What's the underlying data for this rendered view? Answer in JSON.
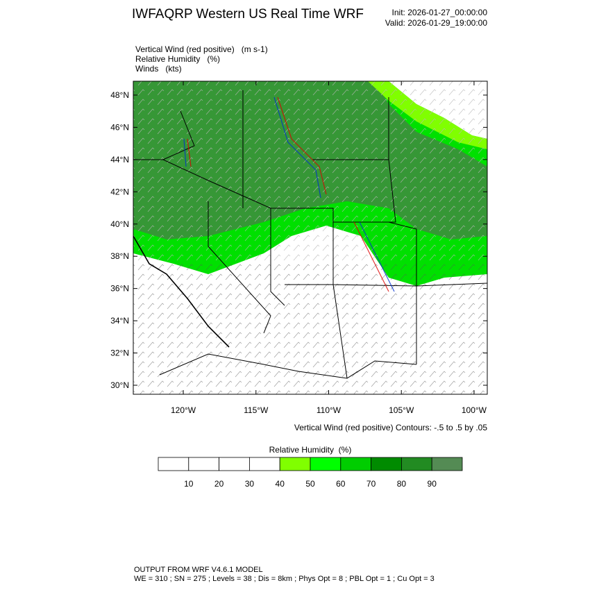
{
  "header": {
    "title": "IWFAQRP Western US Real Time WRF",
    "init": "Init: 2026-01-27_00:00:00",
    "valid": "Valid: 2026-01-29_19:00:00"
  },
  "fields": [
    "Vertical Wind (red positive)   (m s-1)",
    "Relative Humidity   (%)",
    "Winds   (kts)"
  ],
  "map": {
    "latlim": [
      29.44,
      48.86
    ],
    "lonlim": [
      -123.44,
      -99.09
    ],
    "lat_ticks": [
      {
        "value": 30,
        "label": "30°N"
      },
      {
        "value": 32,
        "label": "32°N"
      },
      {
        "value": 34,
        "label": "34°N"
      },
      {
        "value": 36,
        "label": "36°N"
      },
      {
        "value": 38,
        "label": "38°N"
      },
      {
        "value": 40,
        "label": "40°N"
      },
      {
        "value": 42,
        "label": "42°N"
      },
      {
        "value": 44,
        "label": "44°N"
      },
      {
        "value": 46,
        "label": "46°N"
      },
      {
        "value": 48,
        "label": "48°N"
      }
    ],
    "lon_ticks": [
      {
        "value": -120,
        "label": "120°W"
      },
      {
        "value": -115,
        "label": "115°W"
      },
      {
        "value": -110,
        "label": "110°W"
      },
      {
        "value": -105,
        "label": "105°W"
      },
      {
        "value": -100,
        "label": "100°W"
      }
    ]
  },
  "contour_note": "Vertical Wind (red positive) Contours: -.5 to .5 by .05",
  "colorbar": {
    "title": "Relative Humidity  (%)",
    "range": [
      0,
      100
    ],
    "ticks": [
      10,
      20,
      30,
      40,
      50,
      60,
      70,
      80,
      90
    ],
    "colors": [
      "#ffffff",
      "#ffffff",
      "#ffffff",
      "#ffffff",
      "#80ff00",
      "#00ff00",
      "#00cd00",
      "#008b00",
      "#228b22",
      "#548b54"
    ]
  },
  "footer": [
    "OUTPUT FROM WRF V4.6.1 MODEL",
    "WE = 310 ; SN = 275 ; Levels = 38 ; Dis = 8km ; Phys Opt = 8 ; PBL Opt = 1 ; Cu Opt = 3"
  ]
}
